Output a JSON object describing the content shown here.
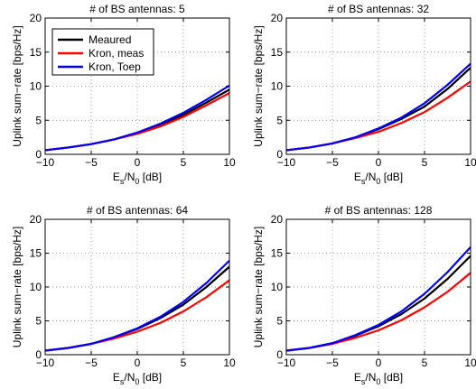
{
  "chart_data": [
    {
      "type": "line",
      "title": "# of BS antennas: 5",
      "xlabel": {
        "base": "E",
        "sub1": "s",
        "mid": "/N",
        "sub2": "0",
        "tail": " [dB]"
      },
      "ylabel": "Uplink sum−rate [bps/Hz]",
      "xlim": [
        -10,
        10
      ],
      "ylim": [
        0,
        20
      ],
      "xticks": [
        "−10",
        "−5",
        "0",
        "5",
        "10"
      ],
      "xtick_values": [
        -10,
        -5,
        0,
        5,
        10
      ],
      "yticks": [
        "0",
        "5",
        "10",
        "15",
        "20"
      ],
      "ytick_values": [
        0,
        5,
        10,
        15,
        20
      ],
      "grid": true,
      "legend": "top-left",
      "x": [
        -10,
        -7.5,
        -5,
        -2.5,
        0,
        2.5,
        5,
        7.5,
        10
      ],
      "series": [
        {
          "name": "Meaured",
          "color": "#000000",
          "values": [
            0.6,
            1.0,
            1.5,
            2.2,
            3.1,
            4.3,
            5.8,
            7.6,
            9.5
          ]
        },
        {
          "name": "Kron, meas",
          "color": "#ff0000",
          "values": [
            0.6,
            1.0,
            1.5,
            2.2,
            3.0,
            4.1,
            5.5,
            7.2,
            9.0
          ]
        },
        {
          "name": "Kron, Toep",
          "color": "#0000ff",
          "values": [
            0.6,
            1.0,
            1.5,
            2.2,
            3.2,
            4.5,
            6.1,
            8.0,
            10.1
          ]
        }
      ]
    },
    {
      "type": "line",
      "title": "# of BS antennas: 32",
      "xlabel": {
        "base": "E",
        "sub1": "s",
        "mid": "/N",
        "sub2": "0",
        "tail": " [dB]"
      },
      "ylabel": "Uplink sum−rate [bps/Hz]",
      "xlim": [
        -10,
        10
      ],
      "ylim": [
        0,
        20
      ],
      "xticks": [
        "−10",
        "−5",
        "0",
        "5",
        "10"
      ],
      "xtick_values": [
        -10,
        -5,
        0,
        5,
        10
      ],
      "yticks": [
        "0",
        "5",
        "10",
        "15",
        "20"
      ],
      "ytick_values": [
        0,
        5,
        10,
        15,
        20
      ],
      "grid": true,
      "x": [
        -10,
        -7.5,
        -5,
        -2.5,
        0,
        2.5,
        5,
        7.5,
        10
      ],
      "series": [
        {
          "name": "Meaured",
          "color": "#000000",
          "values": [
            0.6,
            1.0,
            1.6,
            2.5,
            3.7,
            5.2,
            7.0,
            9.6,
            12.7
          ]
        },
        {
          "name": "Kron, meas",
          "color": "#ff0000",
          "values": [
            0.6,
            1.0,
            1.6,
            2.4,
            3.3,
            4.6,
            6.2,
            8.3,
            10.7
          ]
        },
        {
          "name": "Kron, Toep",
          "color": "#0000ff",
          "values": [
            0.6,
            1.0,
            1.6,
            2.5,
            3.8,
            5.4,
            7.5,
            10.2,
            13.3
          ]
        }
      ]
    },
    {
      "type": "line",
      "title": "# of BS antennas: 64",
      "xlabel": {
        "base": "E",
        "sub1": "s",
        "mid": "/N",
        "sub2": "0",
        "tail": " [dB]"
      },
      "ylabel": "Uplink sum−rate [bps/Hz]",
      "xlim": [
        -10,
        10
      ],
      "ylim": [
        0,
        20
      ],
      "xticks": [
        "−10",
        "−5",
        "0",
        "5",
        "10"
      ],
      "xtick_values": [
        -10,
        -5,
        0,
        5,
        10
      ],
      "yticks": [
        "0",
        "5",
        "10",
        "15",
        "20"
      ],
      "ytick_values": [
        0,
        5,
        10,
        15,
        20
      ],
      "grid": true,
      "x": [
        -10,
        -7.5,
        -5,
        -2.5,
        0,
        2.5,
        5,
        7.5,
        10
      ],
      "series": [
        {
          "name": "Meaured",
          "color": "#000000",
          "values": [
            0.6,
            1.0,
            1.6,
            2.6,
            3.8,
            5.4,
            7.4,
            10.0,
            13.0
          ]
        },
        {
          "name": "Kron, meas",
          "color": "#ff0000",
          "values": [
            0.6,
            1.0,
            1.6,
            2.4,
            3.4,
            4.7,
            6.4,
            8.5,
            11.0
          ]
        },
        {
          "name": "Kron, Toep",
          "color": "#0000ff",
          "values": [
            0.6,
            1.0,
            1.6,
            2.6,
            3.9,
            5.6,
            7.8,
            10.6,
            13.9
          ]
        }
      ]
    },
    {
      "type": "line",
      "title": "# of BS antennas: 128",
      "xlabel": {
        "base": "E",
        "sub1": "s",
        "mid": "/N",
        "sub2": "0",
        "tail": " [dB]"
      },
      "ylabel": "Uplink sum−rate [bps/Hz]",
      "xlim": [
        -10,
        10
      ],
      "ylim": [
        0,
        20
      ],
      "xticks": [
        "−10",
        "−5",
        "0",
        "5",
        "10"
      ],
      "xtick_values": [
        -10,
        -5,
        0,
        5,
        10
      ],
      "yticks": [
        "0",
        "5",
        "10",
        "15",
        "20"
      ],
      "ytick_values": [
        0,
        5,
        10,
        15,
        20
      ],
      "grid": true,
      "x": [
        -10,
        -7.5,
        -5,
        -2.5,
        0,
        2.5,
        5,
        7.5,
        10
      ],
      "series": [
        {
          "name": "Meaured",
          "color": "#000000",
          "values": [
            0.6,
            1.0,
            1.7,
            2.8,
            4.2,
            6.0,
            8.3,
            11.2,
            14.6
          ]
        },
        {
          "name": "Kron, meas",
          "color": "#ff0000",
          "values": [
            0.6,
            1.0,
            1.6,
            2.5,
            3.6,
            5.1,
            7.0,
            9.3,
            12.1
          ]
        },
        {
          "name": "Kron, Toep",
          "color": "#0000ff",
          "values": [
            0.6,
            1.0,
            1.7,
            2.9,
            4.4,
            6.4,
            9.0,
            12.2,
            15.9
          ]
        }
      ]
    }
  ]
}
